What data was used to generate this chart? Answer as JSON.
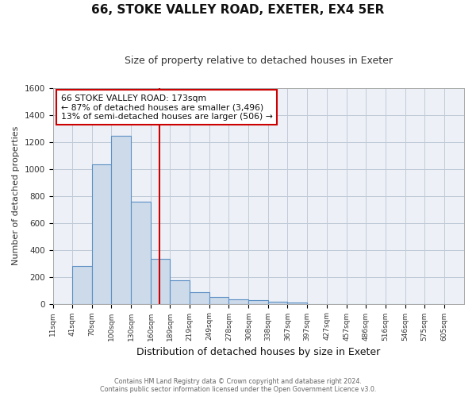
{
  "title": "66, STOKE VALLEY ROAD, EXETER, EX4 5ER",
  "subtitle": "Size of property relative to detached houses in Exeter",
  "xlabel": "Distribution of detached houses by size in Exeter",
  "ylabel": "Number of detached properties",
  "bar_left_edges": [
    11,
    41,
    70,
    100,
    130,
    160,
    189,
    219,
    249,
    278,
    308,
    338,
    367,
    397,
    427,
    457,
    486,
    516,
    546,
    575
  ],
  "bar_heights": [
    0,
    280,
    1035,
    1245,
    755,
    330,
    175,
    85,
    50,
    35,
    25,
    15,
    10,
    0,
    0,
    0,
    0,
    0,
    0,
    0
  ],
  "bar_widths": [
    30,
    29,
    30,
    30,
    30,
    29,
    30,
    30,
    29,
    30,
    30,
    29,
    30,
    30,
    30,
    29,
    30,
    30,
    29,
    30
  ],
  "tick_labels": [
    "11sqm",
    "41sqm",
    "70sqm",
    "100sqm",
    "130sqm",
    "160sqm",
    "189sqm",
    "219sqm",
    "249sqm",
    "278sqm",
    "308sqm",
    "338sqm",
    "367sqm",
    "397sqm",
    "427sqm",
    "457sqm",
    "486sqm",
    "516sqm",
    "546sqm",
    "575sqm",
    "605sqm"
  ],
  "tick_positions": [
    11,
    41,
    70,
    100,
    130,
    160,
    189,
    219,
    249,
    278,
    308,
    338,
    367,
    397,
    427,
    457,
    486,
    516,
    546,
    575,
    605
  ],
  "vline_x": 173,
  "ylim": [
    0,
    1600
  ],
  "xlim": [
    11,
    635
  ],
  "bar_facecolor": "#ccdaea",
  "bar_edgecolor": "#5b8fc4",
  "vline_color": "#cc0000",
  "grid_color": "#c0cad8",
  "bg_color": "#edf1f7",
  "ann_line1": "66 STOKE VALLEY ROAD: 173sqm",
  "ann_line2": "← 87% of detached houses are smaller (3,496)",
  "ann_line3": "13% of semi-detached houses are larger (506) →",
  "footer1": "Contains HM Land Registry data © Crown copyright and database right 2024.",
  "footer2": "Contains public sector information licensed under the Open Government Licence v3.0."
}
